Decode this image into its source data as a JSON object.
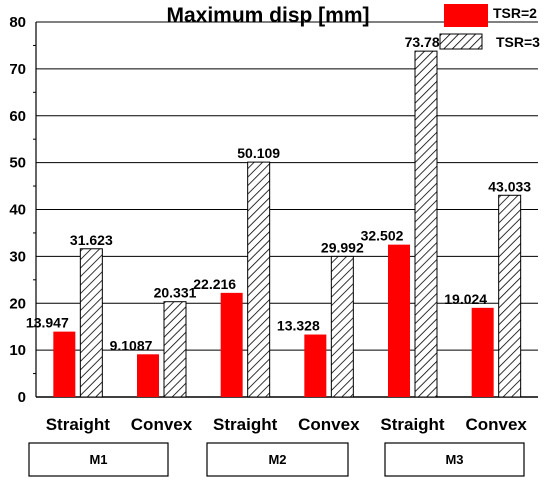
{
  "chart_data": {
    "type": "bar",
    "title": "Maximum disp [mm]",
    "xlabel": "",
    "ylabel": "",
    "ylim": [
      0,
      80
    ],
    "yticks": [
      0,
      10,
      20,
      30,
      40,
      50,
      60,
      70,
      80
    ],
    "grid": true,
    "legend_position": "top-right",
    "categories": [
      "Straight",
      "Convex",
      "Straight",
      "Convex",
      "Straight",
      "Convex"
    ],
    "groups": [
      "M1",
      "M2",
      "M3"
    ],
    "series": [
      {
        "name": "TSR=2",
        "style": "solid",
        "color": "#ff0000",
        "values": [
          13.947,
          9.1087,
          22.216,
          13.328,
          32.502,
          19.024
        ],
        "labels": [
          "13.947",
          "9.1087",
          "22.216",
          "13.328",
          "32.502",
          "19.024"
        ]
      },
      {
        "name": "TSR=3",
        "style": "hatched",
        "color": "#ffffff",
        "values": [
          31.623,
          20.331,
          50.109,
          29.992,
          73.785,
          43.033
        ],
        "labels": [
          "31.623",
          "20.331",
          "50.109",
          "29.992",
          "73.785",
          "43.033"
        ]
      }
    ]
  }
}
